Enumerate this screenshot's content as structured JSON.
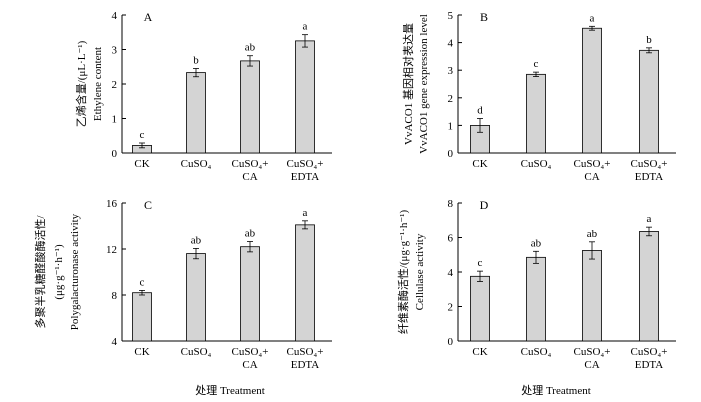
{
  "figure": {
    "xlabel_left": "处理 Treatment",
    "xlabel_right": "处理 Treatment"
  },
  "chart_data": [
    {
      "type": "bar",
      "panel": "A",
      "categories": [
        [
          "CK"
        ],
        [
          "CuSO₄"
        ],
        [
          "CuSO₄+",
          "CA"
        ],
        [
          "CuSO₄+",
          "EDTA"
        ]
      ],
      "values": [
        0.22,
        2.33,
        2.67,
        3.25
      ],
      "errors": [
        0.07,
        0.12,
        0.15,
        0.18
      ],
      "significance": [
        "c",
        "b",
        "ab",
        "a"
      ],
      "ylabel_cn": "乙烯含量/(μL·L⁻¹)",
      "ylabel_en": "Ethylene content",
      "ylim": [
        0,
        4
      ],
      "yticks": [
        0,
        1,
        2,
        3,
        4
      ]
    },
    {
      "type": "bar",
      "panel": "B",
      "categories": [
        [
          "CK"
        ],
        [
          "CuSO₄"
        ],
        [
          "CuSO₄+",
          "CA"
        ],
        [
          "CuSO₄+",
          "EDTA"
        ]
      ],
      "values": [
        1.0,
        2.85,
        4.52,
        3.72
      ],
      "errors": [
        0.25,
        0.08,
        0.07,
        0.09
      ],
      "significance": [
        "d",
        "c",
        "a",
        "b"
      ],
      "ylabel_cn": "VvACO1 基因相对表达量",
      "ylabel_en": "VvACO1 gene expression level",
      "ylim": [
        0,
        5
      ],
      "yticks": [
        0,
        1,
        2,
        3,
        4,
        5
      ]
    },
    {
      "type": "bar",
      "panel": "C",
      "categories": [
        [
          "CK"
        ],
        [
          "CuSO₄"
        ],
        [
          "CuSO₄+",
          "CA"
        ],
        [
          "CuSO₄+",
          "EDTA"
        ]
      ],
      "values": [
        8.2,
        11.6,
        12.2,
        14.1
      ],
      "errors": [
        0.2,
        0.45,
        0.45,
        0.35
      ],
      "significance": [
        "c",
        "ab",
        "ab",
        "a"
      ],
      "ylabel_cn": "多聚半乳糖醛酸酶活性/",
      "ylabel_unit": "(μg·g⁻¹·h⁻¹)",
      "ylabel_en": "Polygalacturonase activity",
      "ylim": [
        4,
        16
      ],
      "yticks": [
        4,
        8,
        12,
        16
      ]
    },
    {
      "type": "bar",
      "panel": "D",
      "categories": [
        [
          "CK"
        ],
        [
          "CuSO₄"
        ],
        [
          "CuSO₄+",
          "CA"
        ],
        [
          "CuSO₄+",
          "EDTA"
        ]
      ],
      "values": [
        3.75,
        4.85,
        5.25,
        6.35
      ],
      "errors": [
        0.3,
        0.35,
        0.5,
        0.25
      ],
      "significance": [
        "c",
        "ab",
        "ab",
        "a"
      ],
      "ylabel_cn": "纤维素酶活性/(μg·g⁻¹·h⁻¹)",
      "ylabel_en": "Cellulase activity",
      "ylim": [
        0,
        8
      ],
      "yticks": [
        0,
        2,
        4,
        6,
        8
      ]
    }
  ]
}
